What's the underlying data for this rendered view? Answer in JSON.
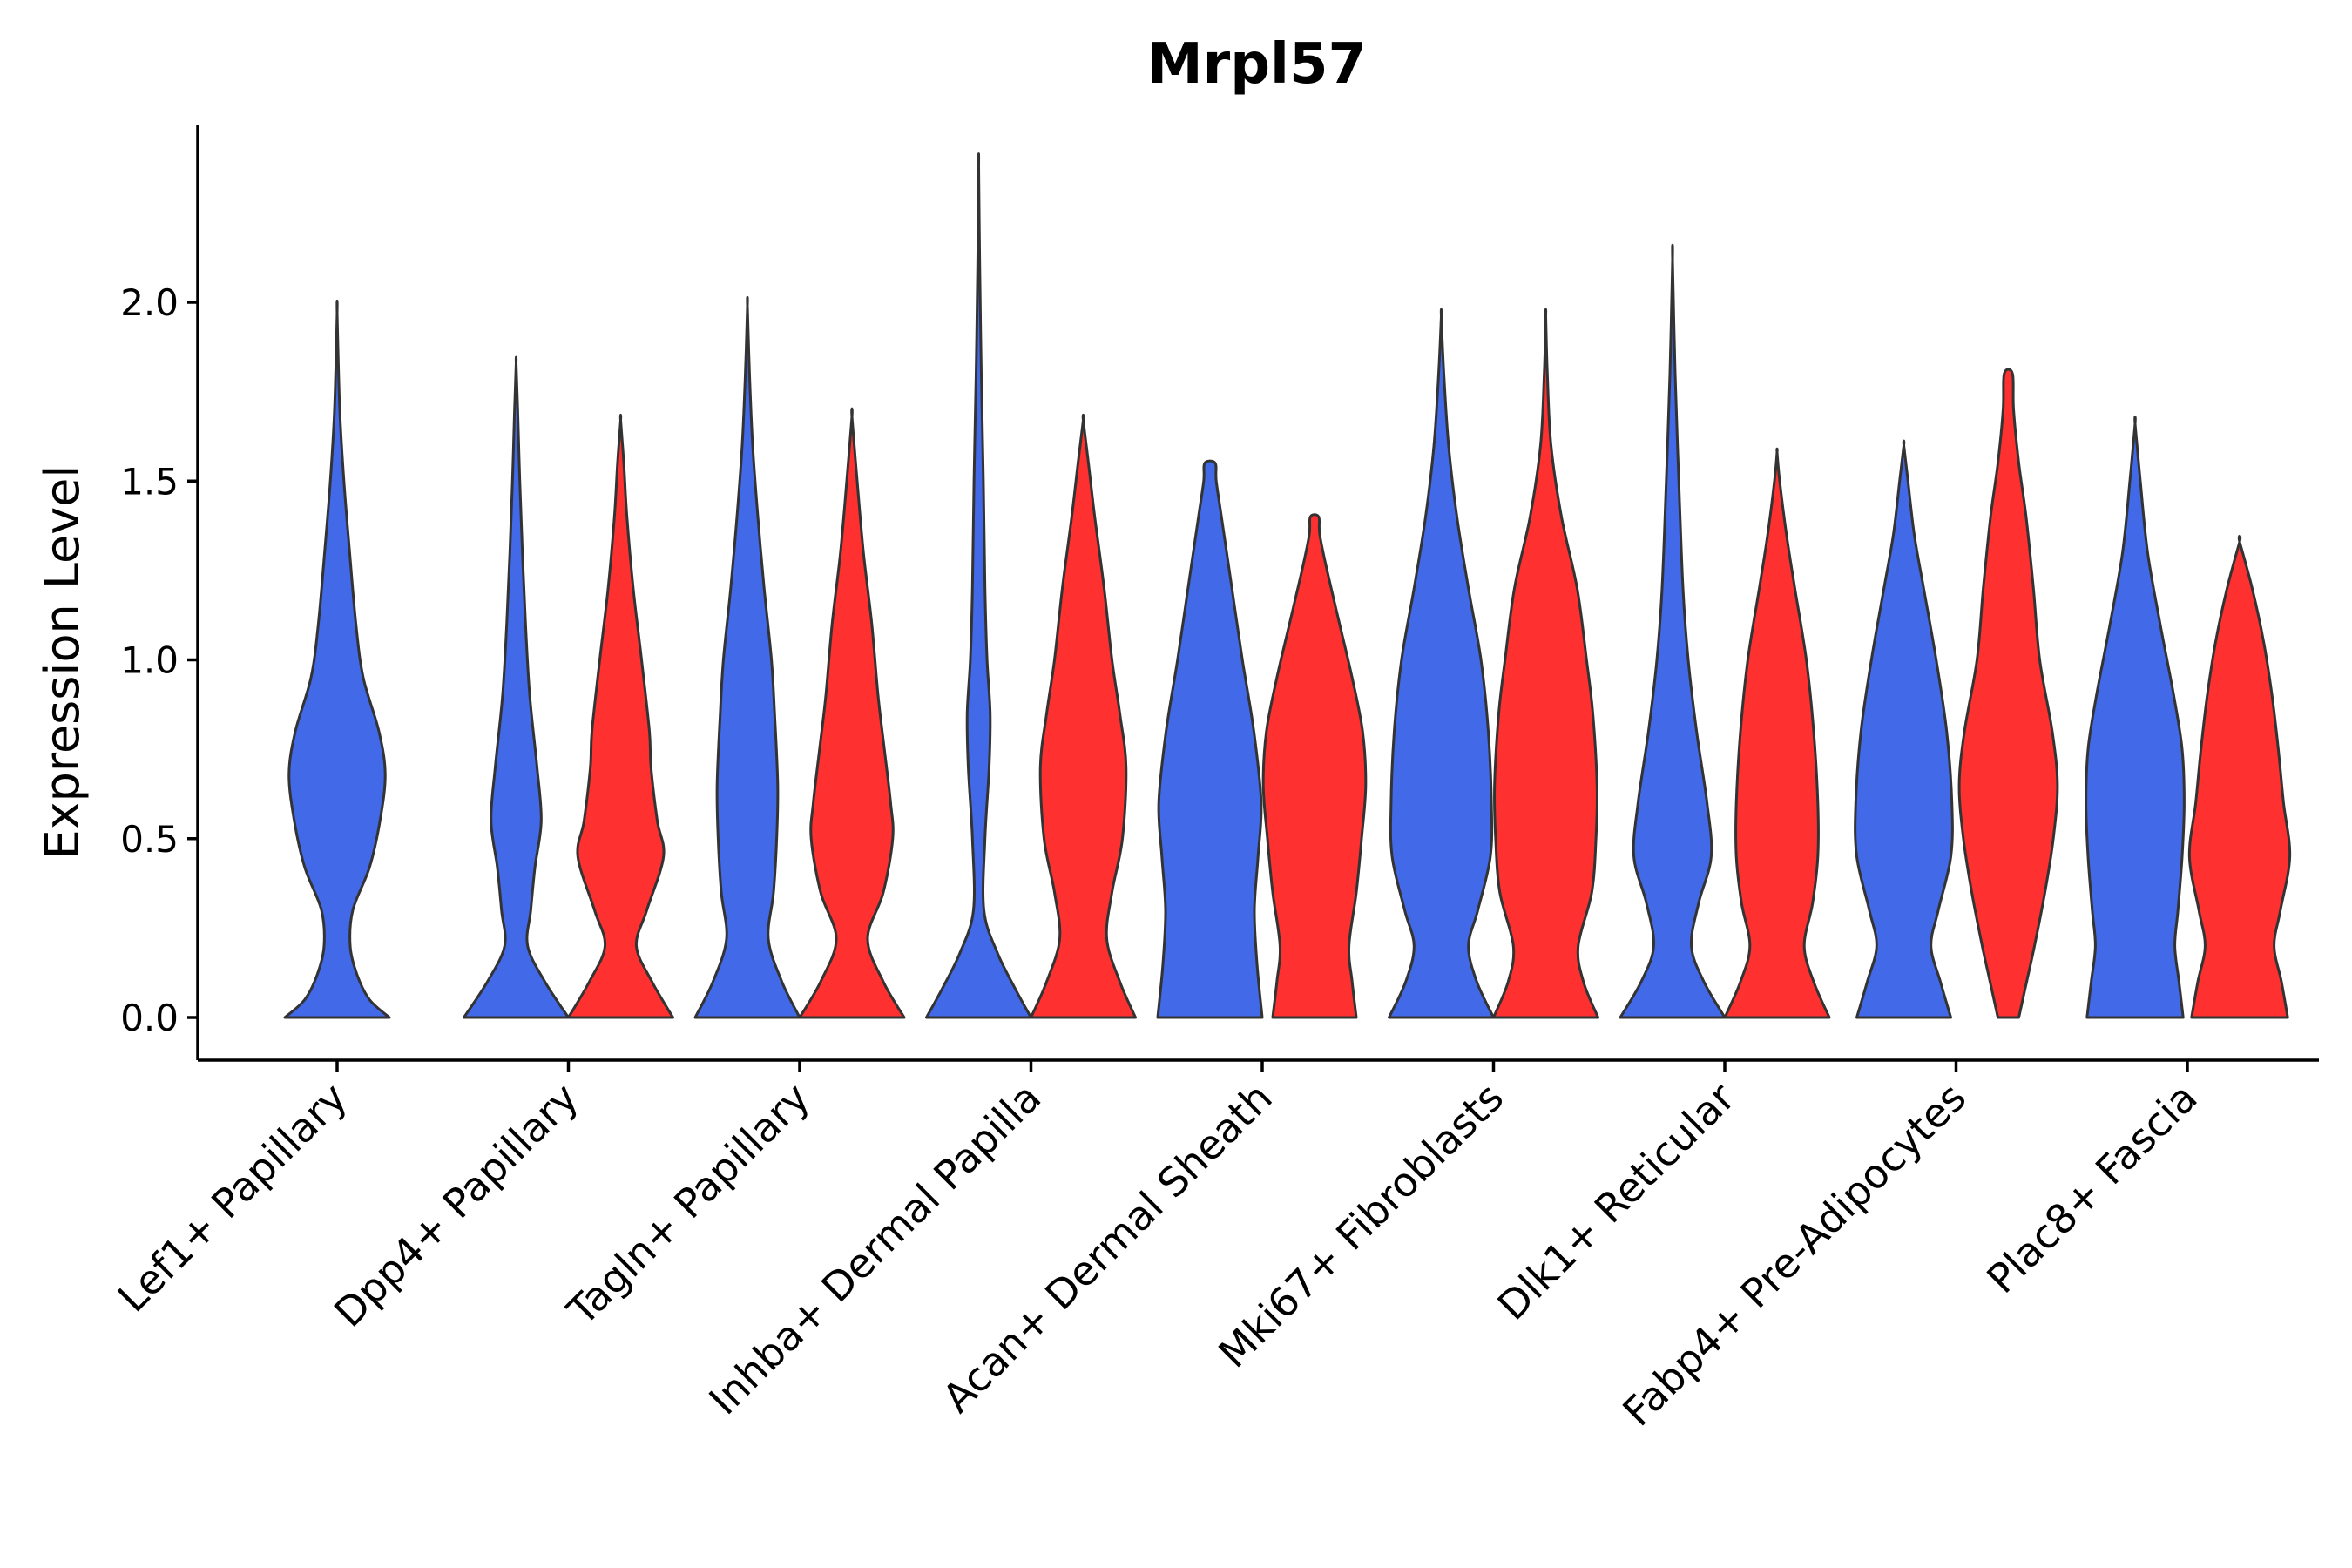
{
  "chart_data": {
    "type": "violin",
    "title": "Mrpl57",
    "xlabel": "",
    "ylabel": "Expression Level",
    "ylim": [
      -0.12,
      2.5
    ],
    "yticks": [
      0.0,
      0.5,
      1.0,
      1.5,
      2.0
    ],
    "ytick_labels": [
      "0.0",
      "0.5",
      "1.0",
      "1.5",
      "2.0"
    ],
    "series_colors": [
      "#4169E8",
      "#FF3030"
    ],
    "categories": [
      "Lef1+ Papillary",
      "Dpp4+ Papillary",
      "Tagln+ Papillary",
      "Inhba+ Dermal Papilla",
      "Acan+ Dermal Sheath",
      "Mki67+ Fibroblasts",
      "Dlk1+ Reticular",
      "Fabp4+ Pre-Adipocytes",
      "Plac8+ Fascia"
    ],
    "violins": [
      {
        "category": "Lef1+ Papillary",
        "group": "blue",
        "max": 1.97,
        "profile": [
          [
            0,
            1.0
          ],
          [
            0.05,
            0.62
          ],
          [
            0.12,
            0.38
          ],
          [
            0.2,
            0.25
          ],
          [
            0.3,
            0.3
          ],
          [
            0.42,
            0.62
          ],
          [
            0.55,
            0.82
          ],
          [
            0.68,
            0.92
          ],
          [
            0.8,
            0.8
          ],
          [
            0.95,
            0.5
          ],
          [
            1.1,
            0.36
          ],
          [
            1.3,
            0.24
          ],
          [
            1.5,
            0.13
          ],
          [
            1.7,
            0.05
          ],
          [
            1.97,
            0.0
          ]
        ]
      },
      {
        "category": "Dpp4+ Papillary",
        "group": "blue",
        "max": 1.83,
        "profile": [
          [
            0,
            1.0
          ],
          [
            0.1,
            0.55
          ],
          [
            0.2,
            0.22
          ],
          [
            0.3,
            0.28
          ],
          [
            0.42,
            0.36
          ],
          [
            0.55,
            0.48
          ],
          [
            0.7,
            0.4
          ],
          [
            0.9,
            0.26
          ],
          [
            1.1,
            0.18
          ],
          [
            1.3,
            0.12
          ],
          [
            1.5,
            0.07
          ],
          [
            1.7,
            0.03
          ],
          [
            1.83,
            0.0
          ]
        ]
      },
      {
        "category": "Dpp4+ Papillary",
        "group": "red",
        "max": 1.67,
        "profile": [
          [
            0,
            1.0
          ],
          [
            0.1,
            0.6
          ],
          [
            0.2,
            0.3
          ],
          [
            0.3,
            0.5
          ],
          [
            0.45,
            0.82
          ],
          [
            0.55,
            0.7
          ],
          [
            0.7,
            0.58
          ],
          [
            0.8,
            0.55
          ],
          [
            1.0,
            0.4
          ],
          [
            1.2,
            0.24
          ],
          [
            1.4,
            0.12
          ],
          [
            1.55,
            0.06
          ],
          [
            1.67,
            0.0
          ]
        ]
      },
      {
        "category": "Tagln+ Papillary",
        "group": "blue",
        "max": 1.99,
        "profile": [
          [
            0,
            1.0
          ],
          [
            0.1,
            0.66
          ],
          [
            0.22,
            0.4
          ],
          [
            0.35,
            0.5
          ],
          [
            0.5,
            0.56
          ],
          [
            0.65,
            0.58
          ],
          [
            0.85,
            0.52
          ],
          [
            1.0,
            0.46
          ],
          [
            1.2,
            0.32
          ],
          [
            1.4,
            0.2
          ],
          [
            1.6,
            0.1
          ],
          [
            1.8,
            0.04
          ],
          [
            1.99,
            0.0
          ]
        ]
      },
      {
        "category": "Tagln+ Papillary",
        "group": "red",
        "max": 1.68,
        "profile": [
          [
            0,
            1.0
          ],
          [
            0.1,
            0.6
          ],
          [
            0.22,
            0.3
          ],
          [
            0.35,
            0.6
          ],
          [
            0.5,
            0.78
          ],
          [
            0.6,
            0.74
          ],
          [
            0.75,
            0.62
          ],
          [
            0.9,
            0.5
          ],
          [
            1.1,
            0.38
          ],
          [
            1.3,
            0.22
          ],
          [
            1.5,
            0.1
          ],
          [
            1.68,
            0.0
          ]
        ]
      },
      {
        "category": "Inhba+ Dermal Papilla",
        "group": "blue",
        "max": 2.38,
        "profile": [
          [
            0,
            1.0
          ],
          [
            0.08,
            0.7
          ],
          [
            0.18,
            0.36
          ],
          [
            0.3,
            0.1
          ],
          [
            0.5,
            0.12
          ],
          [
            0.7,
            0.2
          ],
          [
            0.85,
            0.22
          ],
          [
            1.0,
            0.16
          ],
          [
            1.2,
            0.12
          ],
          [
            1.5,
            0.09
          ],
          [
            1.8,
            0.05
          ],
          [
            2.1,
            0.02
          ],
          [
            2.38,
            0.0
          ]
        ]
      },
      {
        "category": "Inhba+ Dermal Papilla",
        "group": "red",
        "max": 1.67,
        "profile": [
          [
            0,
            1.0
          ],
          [
            0.1,
            0.7
          ],
          [
            0.22,
            0.45
          ],
          [
            0.35,
            0.55
          ],
          [
            0.5,
            0.75
          ],
          [
            0.7,
            0.82
          ],
          [
            0.85,
            0.7
          ],
          [
            1.0,
            0.55
          ],
          [
            1.2,
            0.4
          ],
          [
            1.4,
            0.22
          ],
          [
            1.55,
            0.1
          ],
          [
            1.67,
            0.0
          ]
        ]
      },
      {
        "category": "Acan+ Dermal Sheath",
        "group": "blue",
        "max": 1.55,
        "profile": [
          [
            0,
            1.0
          ],
          [
            0.15,
            0.9
          ],
          [
            0.3,
            0.85
          ],
          [
            0.45,
            0.92
          ],
          [
            0.6,
            0.98
          ],
          [
            0.8,
            0.84
          ],
          [
            1.0,
            0.62
          ],
          [
            1.2,
            0.42
          ],
          [
            1.4,
            0.22
          ],
          [
            1.5,
            0.12
          ],
          [
            1.55,
            0.1
          ]
        ]
      },
      {
        "category": "Acan+ Dermal Sheath",
        "group": "red",
        "max": 1.4,
        "profile": [
          [
            0,
            0.8
          ],
          [
            0.1,
            0.72
          ],
          [
            0.2,
            0.66
          ],
          [
            0.35,
            0.8
          ],
          [
            0.5,
            0.9
          ],
          [
            0.65,
            0.98
          ],
          [
            0.8,
            0.92
          ],
          [
            0.95,
            0.72
          ],
          [
            1.1,
            0.48
          ],
          [
            1.25,
            0.24
          ],
          [
            1.35,
            0.1
          ],
          [
            1.4,
            0.08
          ]
        ]
      },
      {
        "category": "Mki67+ Fibroblasts",
        "group": "blue",
        "max": 1.96,
        "profile": [
          [
            0,
            1.0
          ],
          [
            0.1,
            0.68
          ],
          [
            0.2,
            0.52
          ],
          [
            0.3,
            0.7
          ],
          [
            0.45,
            0.94
          ],
          [
            0.6,
            0.96
          ],
          [
            0.8,
            0.9
          ],
          [
            1.0,
            0.76
          ],
          [
            1.2,
            0.52
          ],
          [
            1.4,
            0.3
          ],
          [
            1.6,
            0.14
          ],
          [
            1.8,
            0.05
          ],
          [
            1.96,
            0.0
          ]
        ]
      },
      {
        "category": "Mki67+ Fibroblasts",
        "group": "red",
        "max": 1.96,
        "profile": [
          [
            0,
            1.0
          ],
          [
            0.1,
            0.72
          ],
          [
            0.2,
            0.62
          ],
          [
            0.35,
            0.88
          ],
          [
            0.5,
            0.96
          ],
          [
            0.65,
            0.98
          ],
          [
            0.85,
            0.9
          ],
          [
            1.0,
            0.78
          ],
          [
            1.2,
            0.6
          ],
          [
            1.4,
            0.3
          ],
          [
            1.6,
            0.1
          ],
          [
            1.8,
            0.03
          ],
          [
            1.96,
            0.0
          ]
        ]
      },
      {
        "category": "Dlk1+ Reticular",
        "group": "blue",
        "max": 2.12,
        "profile": [
          [
            0,
            1.0
          ],
          [
            0.1,
            0.6
          ],
          [
            0.2,
            0.36
          ],
          [
            0.32,
            0.5
          ],
          [
            0.45,
            0.74
          ],
          [
            0.6,
            0.66
          ],
          [
            0.8,
            0.46
          ],
          [
            1.0,
            0.3
          ],
          [
            1.2,
            0.2
          ],
          [
            1.5,
            0.12
          ],
          [
            1.8,
            0.05
          ],
          [
            2.12,
            0.0
          ]
        ]
      },
      {
        "category": "Dlk1+ Reticular",
        "group": "red",
        "max": 1.58,
        "profile": [
          [
            0,
            1.0
          ],
          [
            0.1,
            0.7
          ],
          [
            0.2,
            0.52
          ],
          [
            0.32,
            0.68
          ],
          [
            0.45,
            0.78
          ],
          [
            0.6,
            0.78
          ],
          [
            0.8,
            0.7
          ],
          [
            1.0,
            0.56
          ],
          [
            1.2,
            0.34
          ],
          [
            1.35,
            0.18
          ],
          [
            1.5,
            0.05
          ],
          [
            1.58,
            0.0
          ]
        ]
      },
      {
        "category": "Fabp4+ Pre-Adipocytes",
        "group": "blue",
        "max": 1.6,
        "profile": [
          [
            0,
            0.9
          ],
          [
            0.1,
            0.7
          ],
          [
            0.2,
            0.52
          ],
          [
            0.3,
            0.66
          ],
          [
            0.45,
            0.9
          ],
          [
            0.6,
            0.92
          ],
          [
            0.8,
            0.82
          ],
          [
            1.0,
            0.62
          ],
          [
            1.2,
            0.38
          ],
          [
            1.35,
            0.2
          ],
          [
            1.5,
            0.08
          ],
          [
            1.6,
            0.0
          ]
        ]
      },
      {
        "category": "Fabp4+ Pre-Adipocytes",
        "group": "red",
        "max": 1.8,
        "profile": [
          [
            0,
            0.2
          ],
          [
            0.1,
            0.35
          ],
          [
            0.2,
            0.5
          ],
          [
            0.35,
            0.7
          ],
          [
            0.5,
            0.86
          ],
          [
            0.65,
            0.94
          ],
          [
            0.8,
            0.84
          ],
          [
            1.0,
            0.6
          ],
          [
            1.2,
            0.48
          ],
          [
            1.4,
            0.34
          ],
          [
            1.55,
            0.2
          ],
          [
            1.7,
            0.1
          ],
          [
            1.8,
            0.08
          ]
        ]
      },
      {
        "category": "Plac8+ Fascia",
        "group": "blue",
        "max": 1.66,
        "profile": [
          [
            0,
            0.92
          ],
          [
            0.1,
            0.84
          ],
          [
            0.2,
            0.76
          ],
          [
            0.3,
            0.82
          ],
          [
            0.45,
            0.9
          ],
          [
            0.6,
            0.94
          ],
          [
            0.75,
            0.9
          ],
          [
            0.9,
            0.74
          ],
          [
            1.1,
            0.48
          ],
          [
            1.3,
            0.24
          ],
          [
            1.5,
            0.1
          ],
          [
            1.66,
            0.0
          ]
        ]
      },
      {
        "category": "Plac8+ Fascia",
        "group": "red",
        "max": 1.33,
        "profile": [
          [
            0,
            0.92
          ],
          [
            0.1,
            0.8
          ],
          [
            0.2,
            0.66
          ],
          [
            0.3,
            0.78
          ],
          [
            0.45,
            0.96
          ],
          [
            0.6,
            0.84
          ],
          [
            0.75,
            0.74
          ],
          [
            0.9,
            0.62
          ],
          [
            1.05,
            0.46
          ],
          [
            1.2,
            0.24
          ],
          [
            1.33,
            0.0
          ]
        ]
      }
    ]
  }
}
